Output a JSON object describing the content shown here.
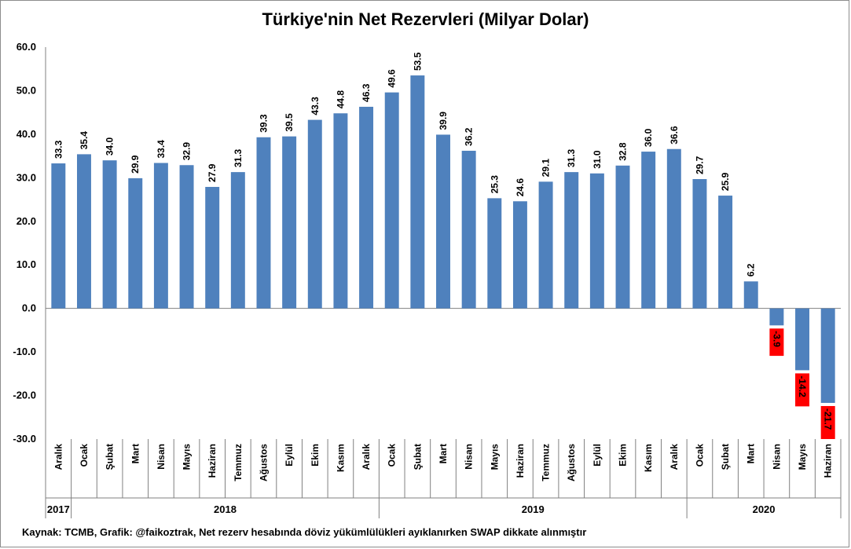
{
  "chart_data": {
    "type": "bar",
    "title": "Türkiye'nin Net Rezervleri (Milyar Dolar)",
    "ylim": [
      -30,
      60
    ],
    "yticks": [
      "60.0",
      "50.0",
      "40.0",
      "30.0",
      "20.0",
      "10.0",
      "0.0",
      "-10.0",
      "-20.0",
      "-30.0"
    ],
    "ytick_values": [
      60,
      50,
      40,
      30,
      20,
      10,
      0,
      -10,
      -20,
      -30
    ],
    "bar_color": "#4f81bd",
    "negative_label_bg": "#ff0000",
    "categories": [
      "Aralık",
      "Ocak",
      "Şubat",
      "Mart",
      "Nisan",
      "Mayıs",
      "Haziran",
      "Temmuz",
      "Ağustos",
      "Eylül",
      "Ekim",
      "Kasım",
      "Aralık",
      "Ocak",
      "Şubat",
      "Mart",
      "Nisan",
      "Mayıs",
      "Haziran",
      "Temmuz",
      "Ağustos",
      "Eylül",
      "Ekim",
      "Kasım",
      "Aralık",
      "Ocak",
      "Şubat",
      "Mart",
      "Nisan",
      "Mayıs",
      "Haziran"
    ],
    "values": [
      33.3,
      35.4,
      34.0,
      29.9,
      33.4,
      32.9,
      27.9,
      31.3,
      39.3,
      39.5,
      43.3,
      44.8,
      46.3,
      49.6,
      53.5,
      39.9,
      36.2,
      25.3,
      24.6,
      29.1,
      31.3,
      31.0,
      32.8,
      36.0,
      36.6,
      29.7,
      25.9,
      6.2,
      -3.9,
      -14.2,
      -21.7
    ],
    "value_labels": [
      "33.3",
      "35.4",
      "34.0",
      "29.9",
      "33.4",
      "32.9",
      "27.9",
      "31.3",
      "39.3",
      "39.5",
      "43.3",
      "44.8",
      "46.3",
      "49.6",
      "53.5",
      "39.9",
      "36.2",
      "25.3",
      "24.6",
      "29.1",
      "31.3",
      "31.0",
      "32.8",
      "36.0",
      "36.6",
      "29.7",
      "25.9",
      "6.2",
      "-3.9",
      "-14.2",
      "-21.7"
    ],
    "years": [
      {
        "label": "2017",
        "count": 1
      },
      {
        "label": "2018",
        "count": 12
      },
      {
        "label": "2019",
        "count": 12
      },
      {
        "label": "2020",
        "count": 6
      }
    ],
    "grid": false
  },
  "source_note": "Kaynak: TCMB, Grafik: @faikoztrak, Net rezerv hesabında döviz yükümlülükleri ayıklanırken SWAP dikkate alınmıştır"
}
